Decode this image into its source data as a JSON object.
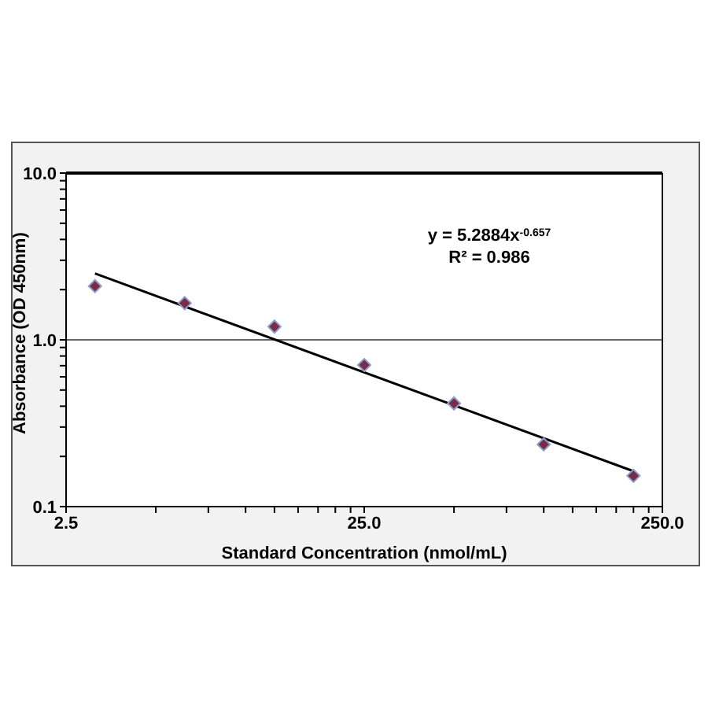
{
  "chart_data": {
    "type": "scatter",
    "xlabel": "Standard Concentration (nmol/mL)",
    "ylabel": "Absorbance  (OD 450nm)",
    "log": "xy",
    "grid": "y",
    "marker": "diamond",
    "xlim": [
      2.5,
      250
    ],
    "ylim": [
      0.1,
      10
    ],
    "xticks": [
      {
        "value": 2.5,
        "label": "2.5"
      },
      {
        "value": 5,
        "label": null
      },
      {
        "value": 7.5,
        "label": null
      },
      {
        "value": 10,
        "label": null
      },
      {
        "value": 12.5,
        "label": null
      },
      {
        "value": 15,
        "label": null
      },
      {
        "value": 17.5,
        "label": null
      },
      {
        "value": 20,
        "label": null
      },
      {
        "value": 22.5,
        "label": null
      },
      {
        "value": 25,
        "label": "25.0"
      },
      {
        "value": 50,
        "label": null
      },
      {
        "value": 75,
        "label": null
      },
      {
        "value": 100,
        "label": null
      },
      {
        "value": 125,
        "label": null
      },
      {
        "value": 150,
        "label": null
      },
      {
        "value": 175,
        "label": null
      },
      {
        "value": 200,
        "label": null
      },
      {
        "value": 225,
        "label": null
      },
      {
        "value": 250,
        "label": "250.0"
      }
    ],
    "yticks": [
      {
        "value": 0.1,
        "label": "0.1"
      },
      {
        "value": 0.2,
        "label": null
      },
      {
        "value": 0.3,
        "label": null
      },
      {
        "value": 0.4,
        "label": null
      },
      {
        "value": 0.5,
        "label": null
      },
      {
        "value": 0.6,
        "label": null
      },
      {
        "value": 0.7,
        "label": null
      },
      {
        "value": 0.8,
        "label": null
      },
      {
        "value": 0.9,
        "label": null
      },
      {
        "value": 1,
        "label": "1.0"
      },
      {
        "value": 2,
        "label": null
      },
      {
        "value": 3,
        "label": null
      },
      {
        "value": 4,
        "label": null
      },
      {
        "value": 5,
        "label": null
      },
      {
        "value": 6,
        "label": null
      },
      {
        "value": 7,
        "label": null
      },
      {
        "value": 8,
        "label": null
      },
      {
        "value": 9,
        "label": null
      },
      {
        "value": 10,
        "label": "10.0"
      }
    ],
    "annotations": [
      "y = 5.2884x$^{-0.657}$",
      "R² = 0.986"
    ],
    "series": [
      {
        "type": "scatter",
        "color": "#7b2a48",
        "x": [
          3.125,
          6.25,
          12.5,
          25,
          50,
          100,
          200
        ],
        "values": [
          2.1,
          1.66,
          1.2,
          0.706,
          0.416,
          0.236,
          0.153
        ]
      },
      {
        "type": "line",
        "color": "#000000",
        "marker": "none",
        "line_style": "solid",
        "x": [
          3.125,
          200
        ],
        "values": [
          2.5,
          0.163
        ]
      }
    ]
  }
}
